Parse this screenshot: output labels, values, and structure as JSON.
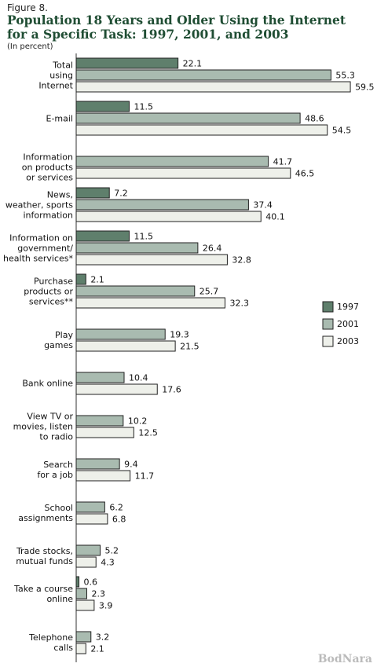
{
  "chart_data": {
    "type": "bar",
    "orientation": "horizontal",
    "figure_label": "Figure 8.",
    "title": "Population 18 Years and Older Using the Internet\nfor a Specific Task: 1997, 2001, and 2003",
    "subtitle": "(In percent)",
    "categories": [
      "Total\nusing\nInternet",
      "E-mail",
      "Information\non products\nor services",
      "News,\nweather, sports\ninformation",
      "Information on\ngovernment/\nhealth services*",
      "Purchase\nproducts or\nservices**",
      "Play\ngames",
      "Bank online",
      "View TV or\nmovies, listen\nto radio",
      "Search\nfor a job",
      "School\nassignments",
      "Trade stocks,\nmutual funds",
      "Take a course\nonline",
      "Telephone\ncalls"
    ],
    "series": [
      {
        "name": "1997",
        "color": "#5f7f6c",
        "values": [
          22.1,
          11.5,
          null,
          7.2,
          11.5,
          2.1,
          null,
          null,
          null,
          null,
          null,
          null,
          0.6,
          null
        ]
      },
      {
        "name": "2001",
        "color": "#a9bbb0",
        "values": [
          55.3,
          48.6,
          41.7,
          37.4,
          26.4,
          25.7,
          19.3,
          10.4,
          10.2,
          9.4,
          6.2,
          5.2,
          2.3,
          3.2
        ]
      },
      {
        "name": "2003",
        "color": "#eef0ea",
        "values": [
          59.5,
          54.5,
          46.5,
          40.1,
          32.8,
          32.3,
          21.5,
          17.6,
          12.5,
          11.7,
          6.8,
          4.3,
          3.9,
          2.1
        ]
      }
    ],
    "xlim": [
      0,
      60
    ],
    "legend": "right",
    "watermark": "BodNara"
  }
}
